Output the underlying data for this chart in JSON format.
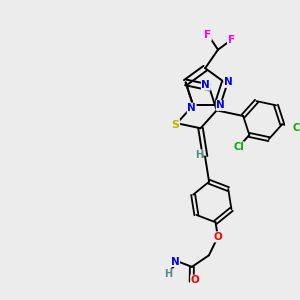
{
  "bg_color": "#ececec",
  "bond_color": "#000000",
  "atom_colors": {
    "N": "#0000ff",
    "S": "#ccaa00",
    "O": "#ff0000",
    "F": "#ff00ff",
    "Cl": "#00aa00",
    "H": "#558888",
    "C": "#000000"
  },
  "figsize": [
    3.0,
    3.0
  ],
  "dpi": 100
}
